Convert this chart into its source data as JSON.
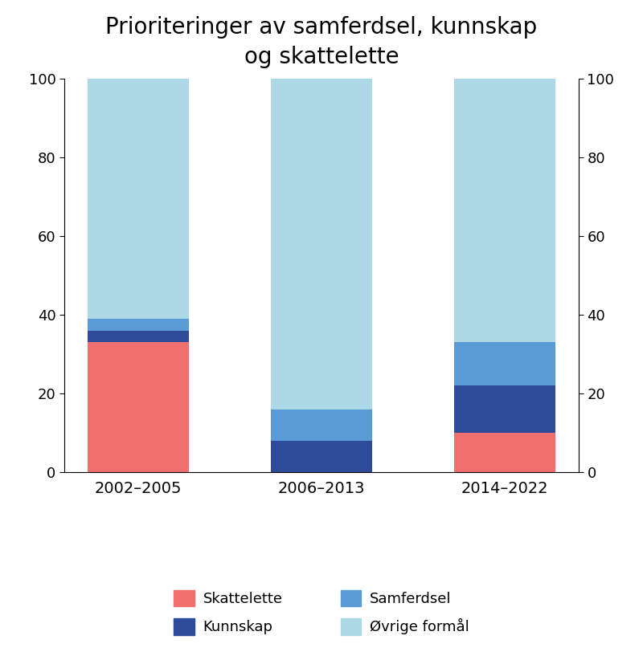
{
  "categories": [
    "2002–2005",
    "2006–2013",
    "2014–2022"
  ],
  "skattelette": [
    33,
    0,
    10
  ],
  "kunnskap": [
    3,
    8,
    12
  ],
  "samferdsel": [
    3,
    8,
    11
  ],
  "ovrige": [
    61,
    84,
    67
  ],
  "colors": {
    "skattelette": "#F07070",
    "kunnskap": "#2E4B9A",
    "samferdsel": "#5B9BD5",
    "ovrige": "#ADD8E6"
  },
  "title": "Prioriteringer av samferdsel, kunnskap\nog skattelette",
  "title_fontsize": 20,
  "ylim": [
    0,
    100
  ],
  "yticks": [
    0,
    20,
    40,
    60,
    80,
    100
  ],
  "bar_width": 0.55,
  "legend_labels": [
    "Skattelette",
    "Kunnskap",
    "Samferdsel",
    "Øvrige formål"
  ],
  "background_color": "#ffffff"
}
